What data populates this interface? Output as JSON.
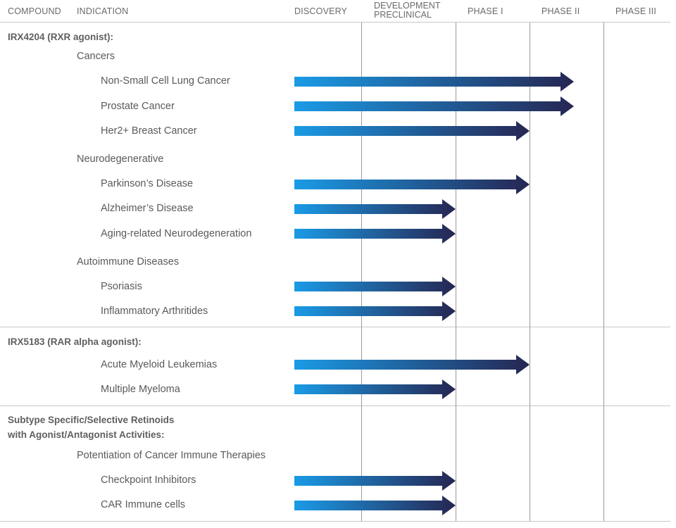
{
  "chart_data": {
    "type": "bar",
    "columns": {
      "compound": "COMPOUND",
      "indication": "INDICATION",
      "phases": [
        "DISCOVERY",
        "DEVELOPMENT PRECLINICAL",
        "PHASE I",
        "PHASE II",
        "PHASE III"
      ]
    },
    "groups": [
      {
        "compound": "IRX4204 (RXR agonist):",
        "categories": [
          {
            "name": "Cancers",
            "indications": [
              {
                "name": "Non-Small Cell Lung Cancer",
                "progress": 3.6
              },
              {
                "name": "Prostate Cancer",
                "progress": 3.6
              },
              {
                "name": "Her2+ Breast Cancer",
                "progress": 3.0
              }
            ]
          },
          {
            "name": "Neurodegenerative",
            "indications": [
              {
                "name": "Parkinson’s Disease",
                "progress": 3.0
              },
              {
                "name": "Alzheimer’s Disease",
                "progress": 2.0
              },
              {
                "name": "Aging-related Neurodegeneration",
                "progress": 2.0
              }
            ]
          },
          {
            "name": "Autoimmune Diseases",
            "indications": [
              {
                "name": "Psoriasis",
                "progress": 2.0
              },
              {
                "name": "Inflammatory Arthritides",
                "progress": 2.0
              }
            ]
          }
        ]
      },
      {
        "compound": "IRX5183 (RAR alpha agonist):",
        "categories": [
          {
            "name": "",
            "indications": [
              {
                "name": "Acute Myeloid Leukemias",
                "progress": 3.0
              },
              {
                "name": "Multiple Myeloma",
                "progress": 2.0
              }
            ]
          }
        ]
      },
      {
        "compound": "Subtype Specific/Selective Retinoids with Agonist/Antagonist Activities:",
        "compound_lines": [
          "Subtype Specific/Selective Retinoids",
          "with Agonist/Antagonist Activities:"
        ],
        "categories": [
          {
            "name": "Potentiation of Cancer Immune Therapies",
            "indications": [
              {
                "name": "Checkpoint Inhibitors",
                "progress": 2.0
              },
              {
                "name": "CAR Immune cells",
                "progress": 2.0
              }
            ]
          }
        ]
      }
    ],
    "colors": {
      "bar_start": "#1a9be6",
      "bar_end": "#262652"
    }
  }
}
